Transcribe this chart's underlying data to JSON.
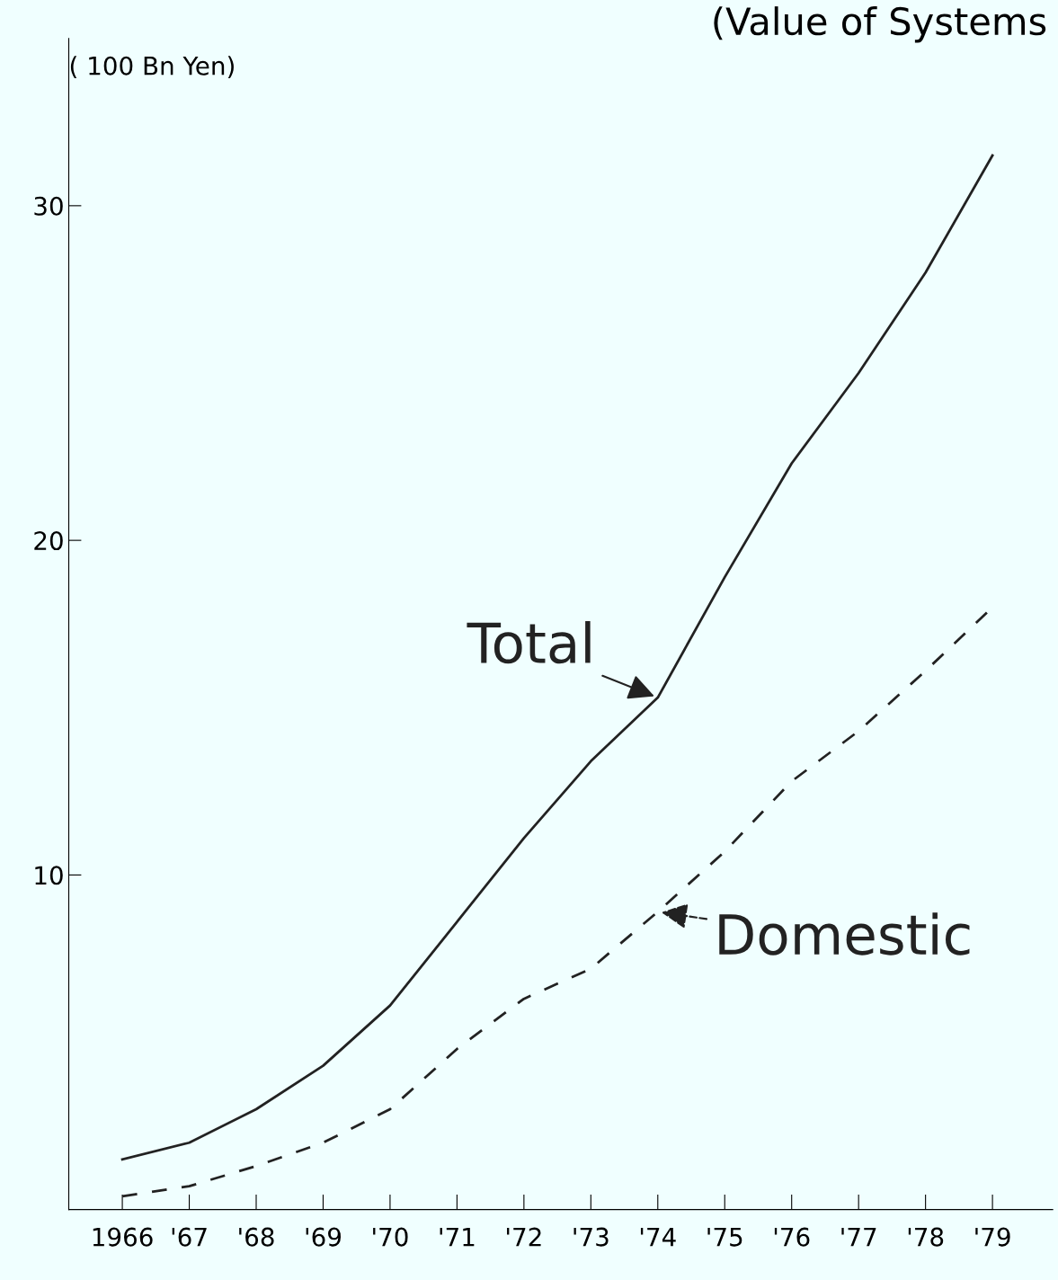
{
  "chart_data": {
    "type": "line",
    "title": "(Value of Systems",
    "ylabel": "( 100 Bn Yen)",
    "categories": [
      "1966",
      "'67",
      "'68",
      "'69",
      "'70",
      "'71",
      "'72",
      "'73",
      "'74",
      "'75",
      "'76",
      "'77",
      "'78",
      "'79"
    ],
    "series": [
      {
        "name": "Total",
        "color": "#222222",
        "line_style": "solid",
        "values": [
          1.5,
          2.0,
          3.0,
          4.3,
          6.1,
          8.6,
          11.1,
          13.4,
          15.3,
          18.9,
          22.3,
          25.0,
          28.0,
          31.5
        ]
      },
      {
        "name": "Domestic",
        "color": "#222222",
        "line_style": "dashed",
        "values": [
          0.4,
          0.7,
          1.3,
          2.0,
          3.0,
          4.8,
          6.3,
          7.2,
          8.9,
          10.7,
          12.8,
          14.3,
          16.1,
          18.0
        ]
      }
    ],
    "ylim": [
      0,
      35
    ],
    "yticks": [
      10,
      20,
      30
    ],
    "grid": false,
    "marker": "none"
  }
}
